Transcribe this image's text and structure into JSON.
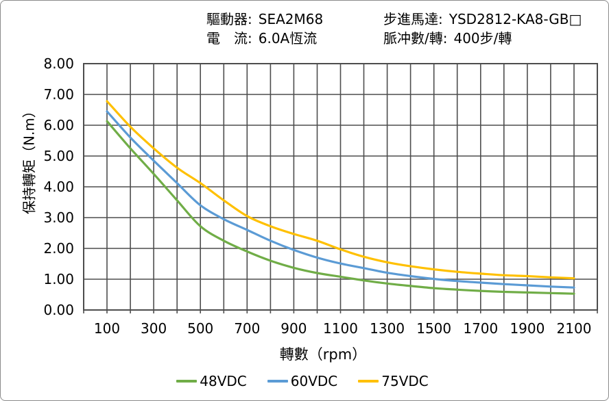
{
  "page": {
    "background": "#ffffff",
    "border_color": "#8a8a8a"
  },
  "header": {
    "driver_label": "驅動器:",
    "driver_value": "SEA2M68",
    "current_label": "電　流:",
    "current_value": "6.0A恆流",
    "motor_label": "步進馬達:",
    "motor_value": "YSD2812-KA8-GB□",
    "pulses_label": "脈冲數/轉:",
    "pulses_value": "400步/轉"
  },
  "chart_data": {
    "type": "line",
    "title": "",
    "xlabel": "轉數（rpm）",
    "ylabel": "保持轉矩（N.m）",
    "xlim": [
      0,
      2200
    ],
    "ylim": [
      0,
      8
    ],
    "grid": true,
    "x_grid_step": 100,
    "y_grid_step": 1,
    "grid_color": "#4d4d4d",
    "axis_text_color": "#000000",
    "legend_position": "bottom",
    "x_tick_values": [
      100,
      300,
      500,
      700,
      900,
      1100,
      1300,
      1500,
      1700,
      1900,
      2100
    ],
    "x_tick_labels": [
      "100",
      "300",
      "500",
      "700",
      "900",
      "1100",
      "1300",
      "1500",
      "1700",
      "1900",
      "2100"
    ],
    "y_tick_values": [
      0,
      1,
      2,
      3,
      4,
      5,
      6,
      7,
      8
    ],
    "y_tick_labels": [
      "0.00",
      "1.00",
      "2.00",
      "3.00",
      "4.00",
      "5.00",
      "6.00",
      "7.00",
      "8.00"
    ],
    "x": [
      100,
      200,
      300,
      400,
      500,
      600,
      700,
      800,
      900,
      1000,
      1100,
      1200,
      1300,
      1400,
      1500,
      1600,
      1700,
      1800,
      1900,
      2000,
      2100
    ],
    "series": [
      {
        "name": "48VDC",
        "color": "#70AD47",
        "values": [
          6.13,
          5.25,
          4.42,
          3.56,
          2.72,
          2.25,
          1.9,
          1.6,
          1.37,
          1.2,
          1.08,
          0.96,
          0.86,
          0.78,
          0.71,
          0.66,
          0.62,
          0.59,
          0.57,
          0.55,
          0.53
        ]
      },
      {
        "name": "60VDC",
        "color": "#5B9BD5",
        "values": [
          6.45,
          5.6,
          4.85,
          4.12,
          3.4,
          2.95,
          2.6,
          2.25,
          1.95,
          1.7,
          1.51,
          1.36,
          1.21,
          1.1,
          1.01,
          0.94,
          0.89,
          0.84,
          0.8,
          0.76,
          0.73
        ]
      },
      {
        "name": "75VDC",
        "color": "#FFC000",
        "values": [
          6.78,
          5.95,
          5.25,
          4.62,
          4.12,
          3.56,
          3.05,
          2.72,
          2.47,
          2.25,
          1.97,
          1.73,
          1.55,
          1.42,
          1.32,
          1.24,
          1.18,
          1.13,
          1.1,
          1.06,
          1.03
        ]
      }
    ]
  }
}
